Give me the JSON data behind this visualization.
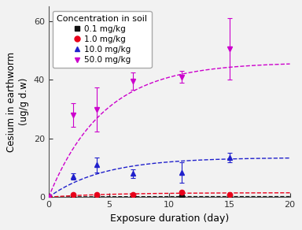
{
  "title": "",
  "xlabel": "Exposure duration (day)",
  "ylabel": "Cesium in earthworm\n(ug/g d.w)",
  "xlim": [
    0,
    20
  ],
  "ylim": [
    0,
    65
  ],
  "yticks": [
    0,
    20,
    40,
    60
  ],
  "xticks": [
    0,
    5,
    10,
    15,
    20
  ],
  "legend_title": "Concentration in soil",
  "bg_color": "#f0f0f0",
  "series": [
    {
      "label": "0.1 mg/kg",
      "color": "#111111",
      "marker": "s",
      "x": [
        0,
        2,
        4,
        7,
        11,
        15
      ],
      "y": [
        0.0,
        0.1,
        0.1,
        0.1,
        0.1,
        0.1
      ],
      "yerr": [
        0.0,
        0.05,
        0.05,
        0.05,
        0.05,
        0.05
      ],
      "fit_asymptote": 0.18,
      "fit_rate": 0.3
    },
    {
      "label": "1.0 mg/kg",
      "color": "#e8001a",
      "marker": "o",
      "x": [
        0,
        2,
        4,
        7,
        11,
        15
      ],
      "y": [
        0.0,
        0.8,
        0.9,
        1.0,
        1.8,
        0.9
      ],
      "yerr": [
        0.0,
        0.1,
        0.1,
        0.1,
        0.4,
        0.1
      ],
      "fit_asymptote": 1.5,
      "fit_rate": 0.2
    },
    {
      "label": "10.0 mg/kg",
      "color": "#2020cc",
      "marker": "^",
      "x": [
        0,
        2,
        4,
        7,
        11,
        15
      ],
      "y": [
        0.0,
        7.0,
        11.0,
        8.0,
        8.5,
        13.5
      ],
      "yerr": [
        0.0,
        1.0,
        2.5,
        1.5,
        3.5,
        1.5
      ],
      "fit_asymptote": 13.5,
      "fit_rate": 0.22
    },
    {
      "label": "50.0 mg/kg",
      "color": "#cc00cc",
      "marker": "v",
      "x": [
        0,
        2,
        4,
        7,
        11,
        15
      ],
      "y": [
        0.0,
        28.0,
        30.0,
        39.5,
        41.0,
        50.5
      ],
      "yerr": [
        0.0,
        4.0,
        7.5,
        3.0,
        2.0,
        10.5
      ],
      "fit_asymptote": 46.0,
      "fit_rate": 0.22
    }
  ]
}
